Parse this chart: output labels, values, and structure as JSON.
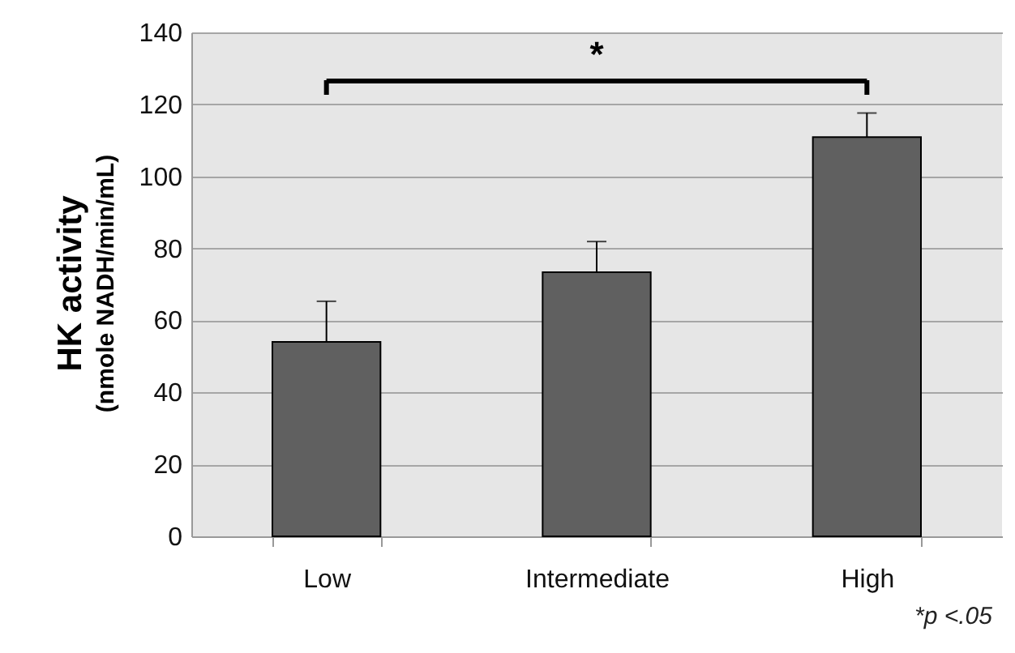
{
  "chart_data": {
    "type": "bar",
    "ylabel": "HK activity\n(nmole NADH/min/mL)",
    "categories": [
      "Low",
      "Intermediate",
      "High"
    ],
    "values": [
      54,
      73.4,
      110.9
    ],
    "errors": [
      [
        54,
        65.3
      ],
      [
        73.4,
        81.9
      ],
      [
        110.9,
        117.6
      ]
    ],
    "color": "#606060",
    "ylim": [
      0,
      140
    ],
    "yticks": [
      0,
      20,
      40,
      60,
      80,
      100,
      120,
      140
    ],
    "grid": "y",
    "annotations": [
      "*",
      "*p <.05"
    ]
  }
}
